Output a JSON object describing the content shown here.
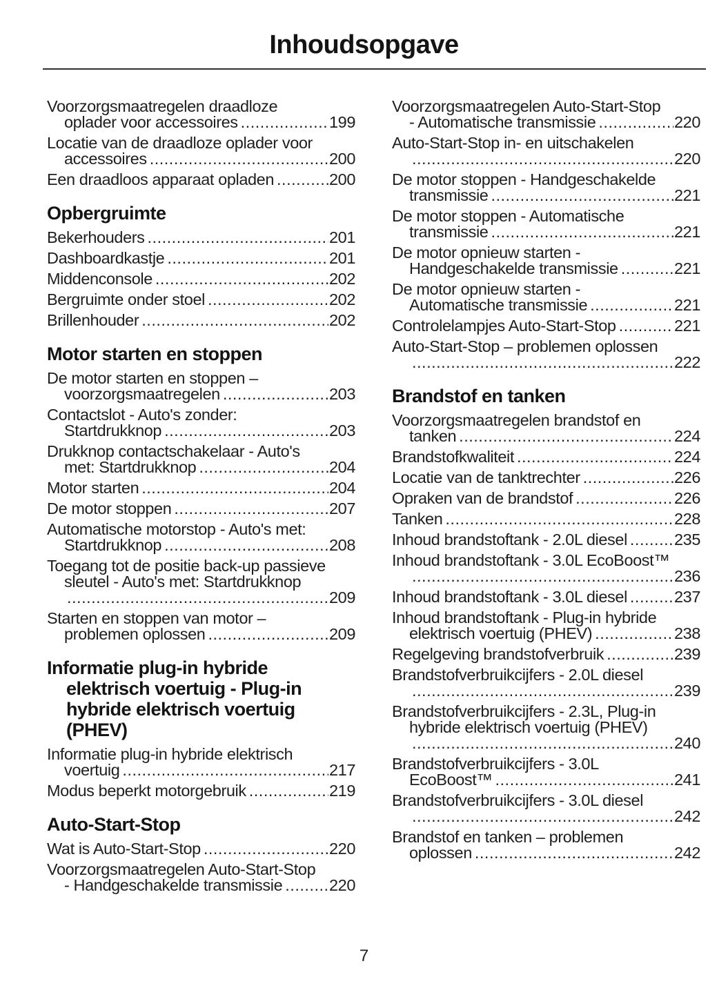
{
  "document": {
    "title": "Inhoudsopgave",
    "page_number": "7"
  },
  "toc": {
    "columns": [
      {
        "blocks": [
          {
            "heading": null,
            "entries": [
              {
                "lines": [
                  "Voorzorgsmaatregelen draadloze",
                  "oplader voor accessoires"
                ],
                "page": "199"
              },
              {
                "lines": [
                  "Locatie van de draadloze oplader voor",
                  "accessoires"
                ],
                "page": "200"
              },
              {
                "lines": [
                  "Een draadloos apparaat opladen"
                ],
                "page": "200"
              }
            ]
          },
          {
            "heading": {
              "lines": [
                "Opbergruimte"
              ]
            },
            "entries": [
              {
                "lines": [
                  "Bekerhouders"
                ],
                "page": "201"
              },
              {
                "lines": [
                  "Dashboardkastje"
                ],
                "page": "201"
              },
              {
                "lines": [
                  "Middenconsole"
                ],
                "page": "202"
              },
              {
                "lines": [
                  "Bergruimte onder stoel"
                ],
                "page": "202"
              },
              {
                "lines": [
                  "Brillenhouder"
                ],
                "page": "202"
              }
            ]
          },
          {
            "heading": {
              "lines": [
                "Motor starten en stoppen"
              ]
            },
            "entries": [
              {
                "lines": [
                  "De motor starten en stoppen –",
                  "voorzorgsmaatregelen"
                ],
                "page": "203"
              },
              {
                "lines": [
                  "Contactslot - Auto's zonder:",
                  "Startdrukknop"
                ],
                "page": "203"
              },
              {
                "lines": [
                  "Drukknop contactschakelaar - Auto's",
                  "met: Startdrukknop"
                ],
                "page": "204"
              },
              {
                "lines": [
                  "Motor starten"
                ],
                "page": "204"
              },
              {
                "lines": [
                  "De motor stoppen"
                ],
                "page": "207"
              },
              {
                "lines": [
                  "Automatische motorstop - Auto's met:",
                  "Startdrukknop"
                ],
                "page": "208"
              },
              {
                "lines": [
                  "Toegang tot de positie back-up passieve",
                  "sleutel - Auto's met: Startdrukknop",
                  ""
                ],
                "page": "209"
              },
              {
                "lines": [
                  "Starten en stoppen van motor –",
                  "problemen oplossen"
                ],
                "page": "209"
              }
            ]
          },
          {
            "heading": {
              "lines": [
                "Informatie plug-in hybride",
                "elektrisch voertuig - Plug-in",
                "hybride elektrisch voertuig",
                "(PHEV)"
              ]
            },
            "entries": [
              {
                "lines": [
                  "Informatie plug-in hybride elektrisch",
                  "voertuig"
                ],
                "page": "217"
              },
              {
                "lines": [
                  "Modus beperkt motorgebruik"
                ],
                "page": "219"
              }
            ]
          },
          {
            "heading": {
              "lines": [
                "Auto-Start-Stop"
              ]
            },
            "entries": [
              {
                "lines": [
                  "Wat is Auto-Start-Stop"
                ],
                "page": "220"
              },
              {
                "lines": [
                  "Voorzorgsmaatregelen Auto-Start-Stop",
                  "- Handgeschakelde transmissie"
                ],
                "page": "220"
              }
            ]
          }
        ]
      },
      {
        "blocks": [
          {
            "heading": null,
            "entries": [
              {
                "lines": [
                  "Voorzorgsmaatregelen Auto-Start-Stop",
                  "- Automatische transmissie"
                ],
                "page": "220"
              },
              {
                "lines": [
                  "Auto-Start-Stop in- en uitschakelen",
                  ""
                ],
                "page": "220"
              },
              {
                "lines": [
                  "De motor stoppen - Handgeschakelde",
                  "transmissie"
                ],
                "page": "221"
              },
              {
                "lines": [
                  "De motor stoppen - Automatische",
                  "transmissie"
                ],
                "page": "221"
              },
              {
                "lines": [
                  "De motor opnieuw starten -",
                  "Handgeschakelde transmissie"
                ],
                "page": "221"
              },
              {
                "lines": [
                  "De motor opnieuw starten -",
                  "Automatische transmissie"
                ],
                "page": "221"
              },
              {
                "lines": [
                  "Controlelampjes Auto-Start-Stop"
                ],
                "page": "221"
              },
              {
                "lines": [
                  "Auto-Start-Stop – problemen oplossen",
                  ""
                ],
                "page": "222"
              }
            ]
          },
          {
            "heading": {
              "lines": [
                "Brandstof en tanken"
              ]
            },
            "entries": [
              {
                "lines": [
                  "Voorzorgsmaatregelen brandstof en",
                  "tanken"
                ],
                "page": "224"
              },
              {
                "lines": [
                  "Brandstofkwaliteit"
                ],
                "page": "224"
              },
              {
                "lines": [
                  "Locatie van de tanktrechter"
                ],
                "page": "226"
              },
              {
                "lines": [
                  "Opraken van de brandstof"
                ],
                "page": "226"
              },
              {
                "lines": [
                  "Tanken"
                ],
                "page": "228"
              },
              {
                "lines": [
                  "Inhoud brandstoftank - 2.0L diesel"
                ],
                "page": "235"
              },
              {
                "lines": [
                  "Inhoud brandstoftank - 3.0L EcoBoost™",
                  ""
                ],
                "page": "236"
              },
              {
                "lines": [
                  "Inhoud brandstoftank - 3.0L diesel"
                ],
                "page": "237"
              },
              {
                "lines": [
                  "Inhoud brandstoftank - Plug-in hybride",
                  "elektrisch voertuig (PHEV)"
                ],
                "page": "238"
              },
              {
                "lines": [
                  "Regelgeving brandstofverbruik"
                ],
                "page": "239"
              },
              {
                "lines": [
                  "Brandstofverbruikcijfers - 2.0L diesel",
                  ""
                ],
                "page": "239"
              },
              {
                "lines": [
                  "Brandstofverbruikcijfers - 2.3L, Plug-in",
                  "hybride elektrisch voertuig (PHEV)",
                  ""
                ],
                "page": "240"
              },
              {
                "lines": [
                  "Brandstofverbruikcijfers - 3.0L",
                  "EcoBoost™"
                ],
                "page": "241"
              },
              {
                "lines": [
                  "Brandstofverbruikcijfers - 3.0L diesel",
                  ""
                ],
                "page": "242"
              },
              {
                "lines": [
                  "Brandstof en tanken – problemen",
                  "oplossen"
                ],
                "page": "242"
              }
            ]
          }
        ]
      }
    ]
  }
}
